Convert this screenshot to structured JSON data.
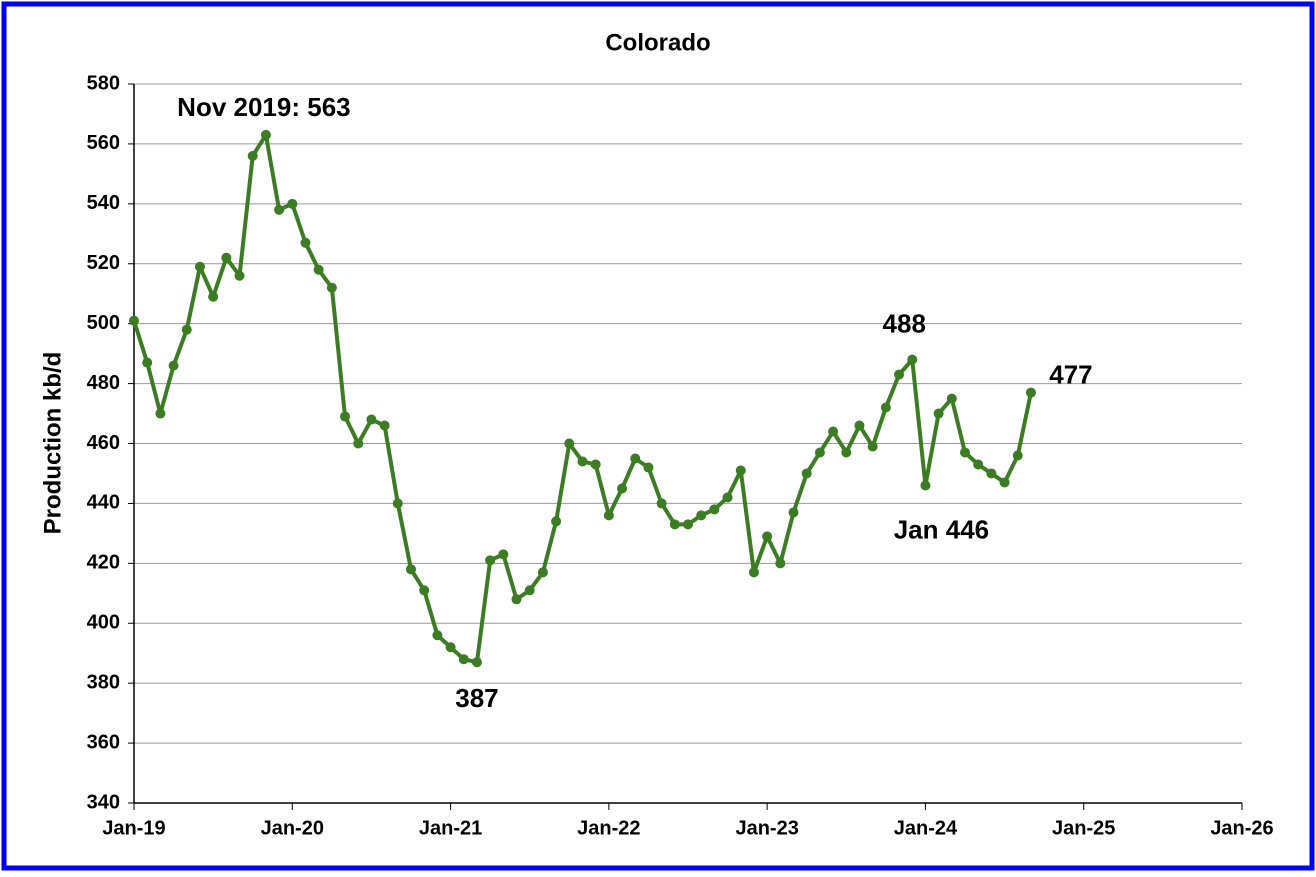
{
  "chart_data": {
    "type": "line",
    "title": "Colorado",
    "y_label": "Production kb/d",
    "x": [
      "2019-01",
      "2019-02",
      "2019-03",
      "2019-04",
      "2019-05",
      "2019-06",
      "2019-07",
      "2019-08",
      "2019-09",
      "2019-10",
      "2019-11",
      "2019-12",
      "2020-01",
      "2020-02",
      "2020-03",
      "2020-04",
      "2020-05",
      "2020-06",
      "2020-07",
      "2020-08",
      "2020-09",
      "2020-10",
      "2020-11",
      "2020-12",
      "2021-01",
      "2021-02",
      "2021-03",
      "2021-04",
      "2021-05",
      "2021-06",
      "2021-07",
      "2021-08",
      "2021-09",
      "2021-10",
      "2021-11",
      "2021-12",
      "2022-01",
      "2022-02",
      "2022-03",
      "2022-04",
      "2022-05",
      "2022-06",
      "2022-07",
      "2022-08",
      "2022-09",
      "2022-10",
      "2022-11",
      "2022-12",
      "2023-01",
      "2023-02",
      "2023-03",
      "2023-04",
      "2023-05",
      "2023-06",
      "2023-07",
      "2023-08",
      "2023-09",
      "2023-10",
      "2023-11",
      "2023-12",
      "2024-01",
      "2024-02",
      "2024-03",
      "2024-04",
      "2024-05",
      "2024-06",
      "2024-07",
      "2024-08",
      "2024-09"
    ],
    "series": [
      {
        "name": "Colorado",
        "color": "#3a7d22",
        "values": [
          501,
          487,
          470,
          486,
          498,
          519,
          509,
          522,
          516,
          556,
          563,
          538,
          540,
          527,
          518,
          512,
          469,
          460,
          468,
          466,
          440,
          418,
          411,
          396,
          392,
          388,
          387,
          421,
          423,
          408,
          411,
          417,
          434,
          460,
          454,
          453,
          436,
          445,
          455,
          452,
          440,
          433,
          433,
          436,
          438,
          442,
          451,
          417,
          429,
          420,
          437,
          450,
          457,
          464,
          457,
          466,
          459,
          472,
          483,
          488,
          446,
          470,
          475,
          457,
          453,
          450,
          447,
          456,
          477
        ]
      }
    ],
    "xlim": [
      "2019-01",
      "2026-01"
    ],
    "xticks": [
      {
        "value": "2019-01",
        "label": "Jan-19"
      },
      {
        "value": "2020-01",
        "label": "Jan-20"
      },
      {
        "value": "2021-01",
        "label": "Jan-21"
      },
      {
        "value": "2022-01",
        "label": "Jan-22"
      },
      {
        "value": "2023-01",
        "label": "Jan-23"
      },
      {
        "value": "2024-01",
        "label": "Jan-24"
      },
      {
        "value": "2025-01",
        "label": "Jan-25"
      },
      {
        "value": "2026-01",
        "label": "Jan-26"
      }
    ],
    "ylim": [
      340,
      580
    ],
    "yticks": [
      340,
      360,
      380,
      400,
      420,
      440,
      460,
      480,
      500,
      520,
      540,
      560,
      580
    ],
    "grid": true,
    "annotations": [
      {
        "text": "Nov 2019:  563",
        "x": "2019-11",
        "y": 563
      },
      {
        "text": "387",
        "x": "2021-03",
        "y": 387
      },
      {
        "text": "488",
        "x": "2023-12",
        "y": 488
      },
      {
        "text": "Jan 446",
        "x": "2024-01",
        "y": 446
      },
      {
        "text": "477",
        "x": "2024-09",
        "y": 477
      }
    ]
  }
}
